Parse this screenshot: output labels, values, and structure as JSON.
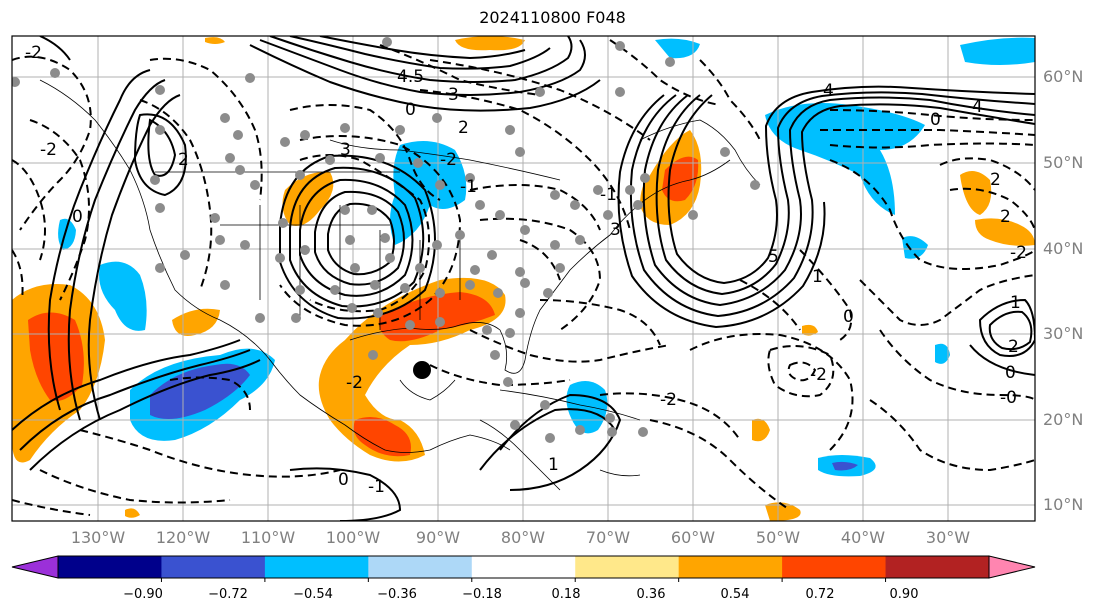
{
  "title": "2024110800 F048",
  "lat_labels": [
    "60°N",
    "50°N",
    "40°N",
    "30°N",
    "20°N",
    "10°N"
  ],
  "lon_labels": [
    "130°W",
    "120°W",
    "110°W",
    "100°W",
    "90°W",
    "80°W",
    "70°W",
    "60°W",
    "50°W",
    "40°W",
    "30°W"
  ],
  "colorbar": {
    "colors": [
      "#9b30d9",
      "#00008b",
      "#3a52d0",
      "#00bfff",
      "#add8f7",
      "#ffffff",
      "#ffe88a",
      "#ffa500",
      "#ff4500",
      "#b22222",
      "#ff85b0"
    ],
    "tick_labels": [
      "−0.90",
      "−0.72",
      "−0.54",
      "−0.36",
      "−0.18",
      "0.18",
      "0.36",
      "0.54",
      "0.72",
      "0.90"
    ]
  },
  "contour_labels": [
    "-2",
    "-2",
    "2",
    "4.5",
    "3",
    "0",
    "2",
    "3",
    "-1",
    "4",
    "5",
    "1",
    "-1",
    "3",
    "0",
    "4",
    "0",
    "-2",
    "-2",
    "2",
    "2",
    "-2",
    "0",
    "1",
    "2",
    "0",
    "-0",
    "-2",
    "0",
    "1",
    "-1",
    "-2"
  ],
  "colors": {
    "grid": "#b0b0b0",
    "coast": "#000000",
    "station": "#8c8c8c",
    "marker": "#000000"
  }
}
